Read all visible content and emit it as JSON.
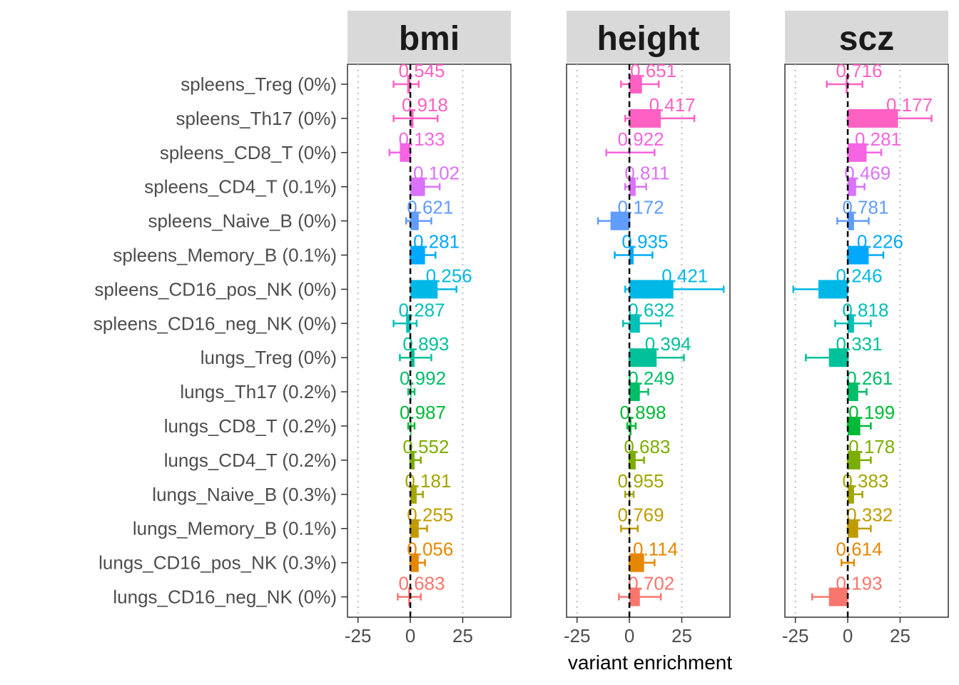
{
  "chart_data": {
    "type": "bar",
    "orientation": "horizontal",
    "xlabel": "variant enrichment",
    "ylabel": "",
    "xlim": [
      -30,
      48
    ],
    "x_ticks": [
      -25,
      0,
      25
    ],
    "x_tick_labels": [
      "-25",
      "0",
      "25"
    ],
    "reference_lines": {
      "solid_dashed_at": 0,
      "dotted_at": [
        -25,
        25
      ]
    },
    "categories": [
      "spleens_Treg (0%)",
      "spleens_Th17 (0%)",
      "spleens_CD8_T (0%)",
      "spleens_CD4_T (0.1%)",
      "spleens_Naive_B (0%)",
      "spleens_Memory_B (0.1%)",
      "spleens_CD16_pos_NK (0%)",
      "spleens_CD16_neg_NK (0%)",
      "lungs_Treg (0%)",
      "lungs_Th17 (0.2%)",
      "lungs_CD8_T (0.2%)",
      "lungs_CD4_T (0.2%)",
      "lungs_Naive_B (0.3%)",
      "lungs_Memory_B (0.1%)",
      "lungs_CD16_pos_NK (0.3%)",
      "lungs_CD16_neg_NK (0%)"
    ],
    "colors": [
      "#FF61C3",
      "#FF61C3",
      "#F564E3",
      "#DB72FB",
      "#619CFF",
      "#00A9FF",
      "#00B8E7",
      "#00C0B8",
      "#00C19A",
      "#00BE67",
      "#00BA38",
      "#7CAE00",
      "#A3A500",
      "#C09B00",
      "#E58700",
      "#F8766D"
    ],
    "panels": [
      {
        "title": "bmi",
        "series": [
          {
            "value": -1.5,
            "lo": -8,
            "hi": 4,
            "p": "0.545"
          },
          {
            "value": 1.5,
            "lo": -8,
            "hi": 13,
            "p": "0.918"
          },
          {
            "value": -5,
            "lo": -10,
            "hi": 0,
            "p": "0.133"
          },
          {
            "value": 7,
            "lo": 0,
            "hi": 14,
            "p": "0.102"
          },
          {
            "value": 4,
            "lo": -2,
            "hi": 10,
            "p": "0.621"
          },
          {
            "value": 7,
            "lo": 0,
            "hi": 12,
            "p": "0.281"
          },
          {
            "value": 13,
            "lo": 0,
            "hi": 22,
            "p": "0.256"
          },
          {
            "value": -2,
            "lo": -8,
            "hi": 3,
            "p": "0.287"
          },
          {
            "value": 2,
            "lo": -5,
            "hi": 10,
            "p": "0.893"
          },
          {
            "value": 0.5,
            "lo": -1,
            "hi": 2,
            "p": "0.992"
          },
          {
            "value": 0.5,
            "lo": -1,
            "hi": 2,
            "p": "0.987"
          },
          {
            "value": 2,
            "lo": 0,
            "hi": 5,
            "p": "0.552"
          },
          {
            "value": 3,
            "lo": 0,
            "hi": 6,
            "p": "0.181"
          },
          {
            "value": 4,
            "lo": 0,
            "hi": 8,
            "p": "0.255"
          },
          {
            "value": 4,
            "lo": 0,
            "hi": 7,
            "p": "0.056"
          },
          {
            "value": -1,
            "lo": -6,
            "hi": 5,
            "p": "0.683"
          }
        ]
      },
      {
        "title": "height",
        "series": [
          {
            "value": 6,
            "lo": -4,
            "hi": 14,
            "p": "0.651"
          },
          {
            "value": 15,
            "lo": -2,
            "hi": 31,
            "p": "0.417"
          },
          {
            "value": 0,
            "lo": -11,
            "hi": 12,
            "p": "0.922"
          },
          {
            "value": 3,
            "lo": -2,
            "hi": 8,
            "p": "0.811"
          },
          {
            "value": -9,
            "lo": -15,
            "hi": 0,
            "p": "0.172"
          },
          {
            "value": 2,
            "lo": -7,
            "hi": 11,
            "p": "0.935"
          },
          {
            "value": 21,
            "lo": -2,
            "hi": 45,
            "p": "0.421"
          },
          {
            "value": 5,
            "lo": -3,
            "hi": 15,
            "p": "0.632"
          },
          {
            "value": 13,
            "lo": 0,
            "hi": 26,
            "p": "0.394"
          },
          {
            "value": 5,
            "lo": 0,
            "hi": 9,
            "p": "0.249"
          },
          {
            "value": 1,
            "lo": -1,
            "hi": 3,
            "p": "0.898"
          },
          {
            "value": 3,
            "lo": 0,
            "hi": 7,
            "p": "0.683"
          },
          {
            "value": 0,
            "lo": -2,
            "hi": 2,
            "p": "0.955"
          },
          {
            "value": 0,
            "lo": -4,
            "hi": 4,
            "p": "0.769"
          },
          {
            "value": 7,
            "lo": 0,
            "hi": 12,
            "p": "0.114"
          },
          {
            "value": 5,
            "lo": -5,
            "hi": 15,
            "p": "0.702"
          }
        ]
      },
      {
        "title": "scz",
        "series": [
          {
            "value": -1,
            "lo": -10,
            "hi": 7,
            "p": "0.716"
          },
          {
            "value": 24,
            "lo": 0,
            "hi": 40,
            "p": "0.177"
          },
          {
            "value": 9,
            "lo": 0,
            "hi": 16,
            "p": "0.281"
          },
          {
            "value": 4,
            "lo": 0,
            "hi": 8,
            "p": "0.469"
          },
          {
            "value": 3,
            "lo": -5,
            "hi": 10,
            "p": "0.781"
          },
          {
            "value": 10,
            "lo": 0,
            "hi": 17,
            "p": "0.226"
          },
          {
            "value": -14,
            "lo": -26,
            "hi": 0,
            "p": "0.246"
          },
          {
            "value": 3,
            "lo": -6,
            "hi": 11,
            "p": "0.818"
          },
          {
            "value": -9,
            "lo": -20,
            "hi": 0,
            "p": "0.331"
          },
          {
            "value": 5,
            "lo": 0,
            "hi": 9,
            "p": "0.261"
          },
          {
            "value": 6,
            "lo": 0,
            "hi": 11,
            "p": "0.199"
          },
          {
            "value": 6,
            "lo": 0,
            "hi": 11,
            "p": "0.178"
          },
          {
            "value": 3,
            "lo": 0,
            "hi": 7,
            "p": "0.383"
          },
          {
            "value": 5,
            "lo": 0,
            "hi": 11,
            "p": "0.332"
          },
          {
            "value": 0,
            "lo": -3,
            "hi": 3,
            "p": "0.614"
          },
          {
            "value": -9,
            "lo": -17,
            "hi": 0,
            "p": "0.193"
          }
        ]
      }
    ]
  }
}
